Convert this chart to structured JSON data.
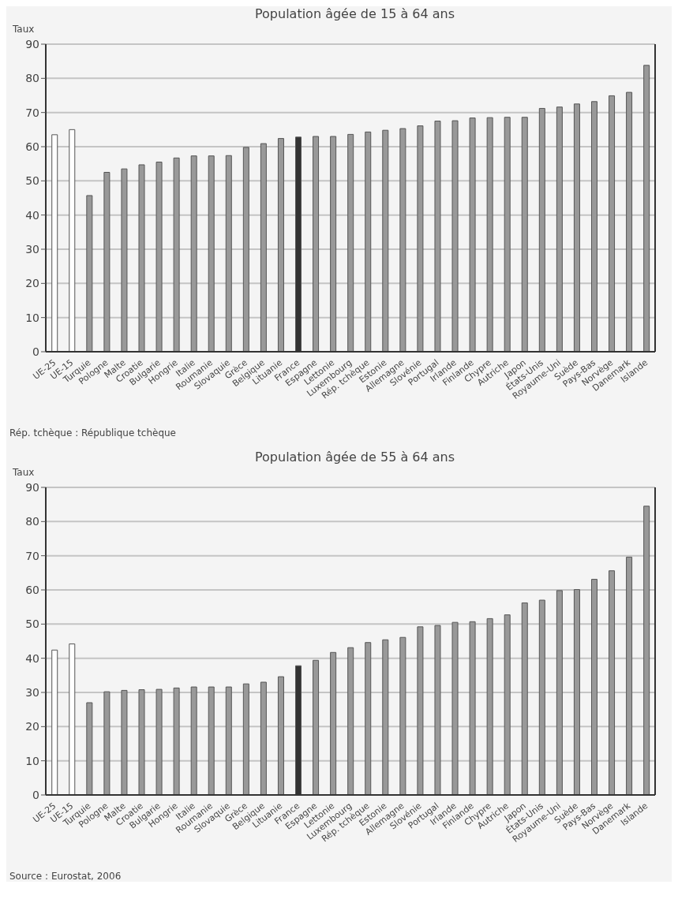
{
  "chart_data": [
    {
      "type": "bar",
      "title": "Population âgée de 15 à 64 ans",
      "ylabel": "Taux",
      "categories": [
        "UE-25",
        "UE-15",
        "Turquie",
        "Pologne",
        "Malte",
        "Croatie",
        "Bulgarie",
        "Hongrie",
        "Italie",
        "Roumanie",
        "Slovaquie",
        "Grèce",
        "Belgique",
        "Lituanie",
        "France",
        "Espagne",
        "Lettonie",
        "Luxembourg",
        "Rép. tchèque",
        "Estonie",
        "Allemagne",
        "Slovénie",
        "Portugal",
        "Irlande",
        "Finlande",
        "Chypre",
        "Autriche",
        "Japon",
        "États-Unis",
        "Royaume-Uni",
        "Suède",
        "Pays-Bas",
        "Norvège",
        "Danemark",
        "Islande"
      ],
      "values": [
        63.5,
        65.0,
        45.7,
        52.5,
        53.5,
        54.7,
        55.5,
        56.7,
        57.3,
        57.3,
        57.4,
        59.8,
        60.9,
        62.4,
        62.8,
        63.0,
        63.0,
        63.6,
        64.3,
        64.8,
        65.3,
        66.1,
        67.5,
        67.6,
        68.4,
        68.5,
        68.6,
        68.6,
        71.2,
        71.6,
        72.5,
        73.2,
        74.9,
        75.9,
        83.8
      ],
      "colors": [
        "#ffffff",
        "#ffffff",
        "#999999",
        "#999999",
        "#999999",
        "#999999",
        "#999999",
        "#999999",
        "#999999",
        "#999999",
        "#999999",
        "#999999",
        "#999999",
        "#999999",
        "#333333",
        "#999999",
        "#999999",
        "#999999",
        "#999999",
        "#999999",
        "#999999",
        "#999999",
        "#999999",
        "#999999",
        "#999999",
        "#999999",
        "#999999",
        "#999999",
        "#999999",
        "#999999",
        "#999999",
        "#999999",
        "#999999",
        "#999999",
        "#999999"
      ],
      "ylim": [
        0,
        90
      ],
      "yticks": [
        0,
        10,
        20,
        30,
        40,
        50,
        60,
        70,
        80,
        90
      ],
      "grid": "y",
      "annotations": [
        "Rép. tchèque : République tchèque"
      ]
    },
    {
      "type": "bar",
      "title": "Population âgée de 55 à 64 ans",
      "ylabel": "Taux",
      "categories": [
        "UE-25",
        "UE-15",
        "Turquie",
        "Pologne",
        "Malte",
        "Croatie",
        "Bulgarie",
        "Hongrie",
        "Italie",
        "Roumanie",
        "Slovaquie",
        "Grèce",
        "Belgique",
        "Lituanie",
        "France",
        "Espagne",
        "Lettonie",
        "Luxembourg",
        "Rép. tchèque",
        "Estonie",
        "Allemagne",
        "Slovénie",
        "Portugal",
        "Irlande",
        "Finlande",
        "Chypre",
        "Autriche",
        "Japon",
        "États-Unis",
        "Royaume-Uni",
        "Suède",
        "Pays-Bas",
        "Norvège",
        "Danemark",
        "Islande"
      ],
      "values": [
        42.4,
        44.2,
        27.0,
        30.2,
        30.6,
        30.8,
        30.9,
        31.3,
        31.6,
        31.6,
        31.6,
        32.5,
        33.0,
        34.6,
        37.8,
        39.4,
        41.7,
        43.1,
        44.6,
        45.4,
        46.1,
        49.2,
        49.6,
        50.5,
        50.7,
        51.6,
        52.7,
        56.2,
        57.0,
        59.8,
        60.1,
        63.1,
        65.6,
        69.6,
        84.5
      ],
      "colors": [
        "#ffffff",
        "#ffffff",
        "#999999",
        "#999999",
        "#999999",
        "#999999",
        "#999999",
        "#999999",
        "#999999",
        "#999999",
        "#999999",
        "#999999",
        "#999999",
        "#999999",
        "#333333",
        "#999999",
        "#999999",
        "#999999",
        "#999999",
        "#999999",
        "#999999",
        "#999999",
        "#999999",
        "#999999",
        "#999999",
        "#999999",
        "#999999",
        "#999999",
        "#999999",
        "#999999",
        "#999999",
        "#999999",
        "#999999",
        "#999999",
        "#999999"
      ],
      "ylim": [
        0,
        90
      ],
      "yticks": [
        0,
        10,
        20,
        30,
        40,
        50,
        60,
        70,
        80,
        90
      ],
      "grid": "y",
      "annotations": [
        "Source : Eurostat, 2006"
      ]
    }
  ]
}
